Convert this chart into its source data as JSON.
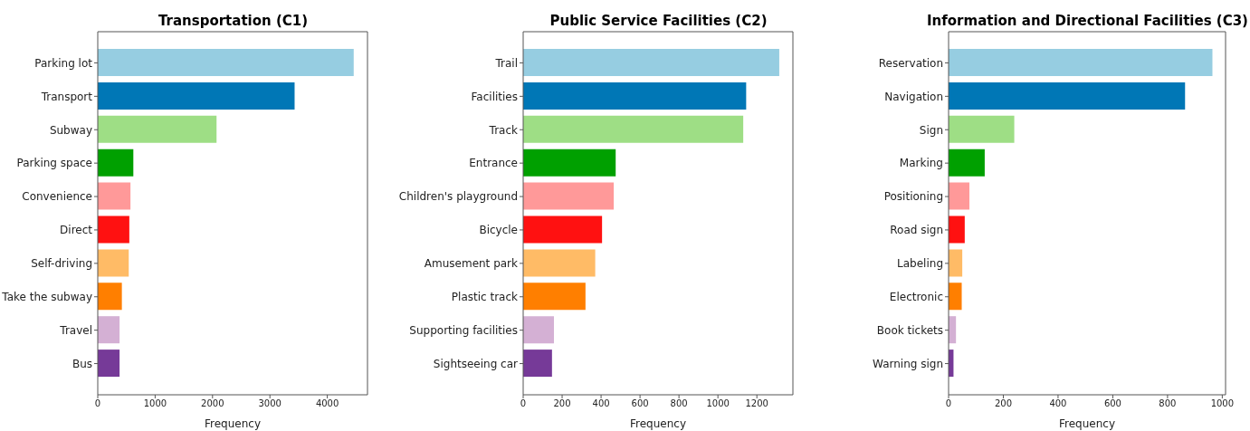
{
  "chart_data": [
    {
      "type": "bar",
      "orientation": "horizontal",
      "title": "Transportation (C1)",
      "xlabel": "Frequency",
      "categories": [
        "Parking lot",
        "Transport",
        "Subway",
        "Parking space",
        "Convenience",
        "Direct",
        "Self-driving",
        "Take the subway",
        "Travel",
        "Bus"
      ],
      "values": [
        4460,
        3430,
        2070,
        620,
        570,
        550,
        540,
        420,
        380,
        380
      ],
      "colors": [
        "#96cde1",
        "#0077b6",
        "#9ede85",
        "#00a000",
        "#ff9999",
        "#ff1111",
        "#ffbb66",
        "#ff7f00",
        "#d4b0d4",
        "#763a98"
      ],
      "xlim": [
        0,
        4700
      ],
      "xticks": [
        0,
        1000,
        2000,
        3000,
        4000
      ]
    },
    {
      "type": "bar",
      "orientation": "horizontal",
      "title": "Public Service Facilities (C2)",
      "xlabel": "Frequency",
      "categories": [
        "Trail",
        "Facilities",
        "Track",
        "Entrance",
        "Children's playground",
        "Bicycle",
        "Amusement park",
        "Plastic track",
        "Supporting facilities",
        "Sightseeing car"
      ],
      "values": [
        1315,
        1145,
        1130,
        475,
        465,
        405,
        370,
        320,
        158,
        148
      ],
      "colors": [
        "#96cde1",
        "#0077b6",
        "#9ede85",
        "#00a000",
        "#ff9999",
        "#ff1111",
        "#ffbb66",
        "#ff7f00",
        "#d4b0d4",
        "#763a98"
      ],
      "xlim": [
        0,
        1385
      ],
      "xticks": [
        0,
        200,
        400,
        600,
        800,
        1000,
        1200
      ]
    },
    {
      "type": "bar",
      "orientation": "horizontal",
      "title": "Information and Directional Facilities (C3)",
      "xlabel": "Frequency",
      "categories": [
        "Reservation",
        "Navigation",
        "Sign",
        "Marking",
        "Positioning",
        "Road sign",
        "Labeling",
        "Electronic",
        "Book tickets",
        "Warning sign"
      ],
      "values": [
        964,
        864,
        240,
        132,
        76,
        59,
        50,
        48,
        27,
        18
      ],
      "colors": [
        "#96cde1",
        "#0077b6",
        "#9ede85",
        "#00a000",
        "#ff9999",
        "#ff1111",
        "#ffbb66",
        "#ff7f00",
        "#d4b0d4",
        "#763a98"
      ],
      "xlim": [
        0,
        1012
      ],
      "xticks": [
        0,
        200,
        400,
        600,
        800,
        1000
      ]
    }
  ]
}
